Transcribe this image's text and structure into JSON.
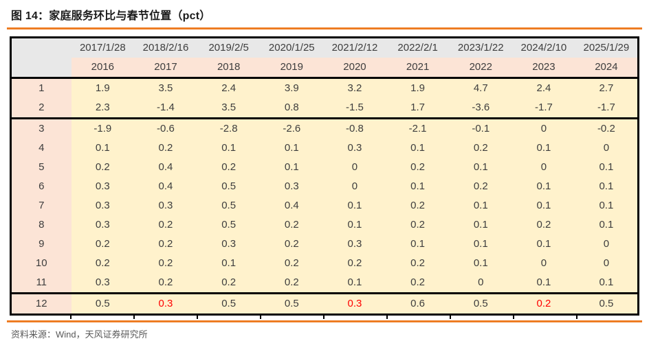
{
  "title": "图 14：家庭服务环比与春节位置（pct）",
  "footer": "资料来源：Wind，天风证券研究所",
  "colors": {
    "accent_orange": "#ee7c23",
    "header_gray": "#e8e8e8",
    "peach": "#fce4d6",
    "yellow": "#fff2cc",
    "highlight_red": "#ff0000",
    "border_black": "#000000"
  },
  "table": {
    "corner_label": "",
    "date_header": [
      "2017/1/28",
      "2018/2/16",
      "2019/2/5",
      "2020/1/25",
      "2021/2/12",
      "2022/2/1",
      "2023/1/22",
      "2024/2/10",
      "2025/1/29"
    ],
    "year_header": [
      "2016",
      "2017",
      "2018",
      "2019",
      "2020",
      "2021",
      "2022",
      "2023",
      "2024"
    ],
    "group_end_months": [
      "2",
      "11"
    ],
    "rows": [
      {
        "month": "1",
        "values": [
          "1.9",
          "3.5",
          "2.4",
          "3.9",
          "3.2",
          "1.9",
          "4.7",
          "2.4",
          "2.7"
        ],
        "red_indexes": []
      },
      {
        "month": "2",
        "values": [
          "2.3",
          "-1.4",
          "3.5",
          "0.8",
          "-1.5",
          "1.7",
          "-3.6",
          "-1.7",
          "-1.7"
        ],
        "red_indexes": []
      },
      {
        "month": "3",
        "values": [
          "-1.9",
          "-0.6",
          "-2.8",
          "-2.6",
          "-0.8",
          "-2.1",
          "-0.1",
          "0",
          "-0.2"
        ],
        "red_indexes": []
      },
      {
        "month": "4",
        "values": [
          "0.1",
          "0.2",
          "0.1",
          "0.1",
          "0.3",
          "0.1",
          "0.2",
          "0.1",
          "0"
        ],
        "red_indexes": []
      },
      {
        "month": "5",
        "values": [
          "0.2",
          "0.4",
          "0.2",
          "0.1",
          "0",
          "0.2",
          "0.1",
          "0",
          "0.1"
        ],
        "red_indexes": []
      },
      {
        "month": "6",
        "values": [
          "0.3",
          "0.4",
          "0.5",
          "0.3",
          "0",
          "0.1",
          "0.2",
          "0.1",
          "0.1"
        ],
        "red_indexes": []
      },
      {
        "month": "7",
        "values": [
          "0.3",
          "0.3",
          "0.5",
          "0.4",
          "0.1",
          "0.2",
          "0.1",
          "0.1",
          "0.1"
        ],
        "red_indexes": []
      },
      {
        "month": "8",
        "values": [
          "0.3",
          "0.2",
          "0.5",
          "0.2",
          "0.1",
          "0.2",
          "0.1",
          "0.2",
          "0.1"
        ],
        "red_indexes": []
      },
      {
        "month": "9",
        "values": [
          "0.2",
          "0.2",
          "0.3",
          "0.2",
          "0.3",
          "0.1",
          "0.1",
          "0.1",
          "0"
        ],
        "red_indexes": []
      },
      {
        "month": "10",
        "values": [
          "0.2",
          "0.2",
          "0.1",
          "0.2",
          "0.2",
          "0.2",
          "0.1",
          "0",
          "0"
        ],
        "red_indexes": []
      },
      {
        "month": "11",
        "values": [
          "0.3",
          "0.2",
          "0.2",
          "0.2",
          "0.1",
          "0.2",
          "0",
          "0.1",
          "0.1"
        ],
        "red_indexes": []
      },
      {
        "month": "12",
        "values": [
          "0.5",
          "0.3",
          "0.5",
          "0.5",
          "0.3",
          "0.6",
          "0.5",
          "0.2",
          "0.5"
        ],
        "red_indexes": [
          1,
          4,
          7
        ]
      }
    ]
  }
}
